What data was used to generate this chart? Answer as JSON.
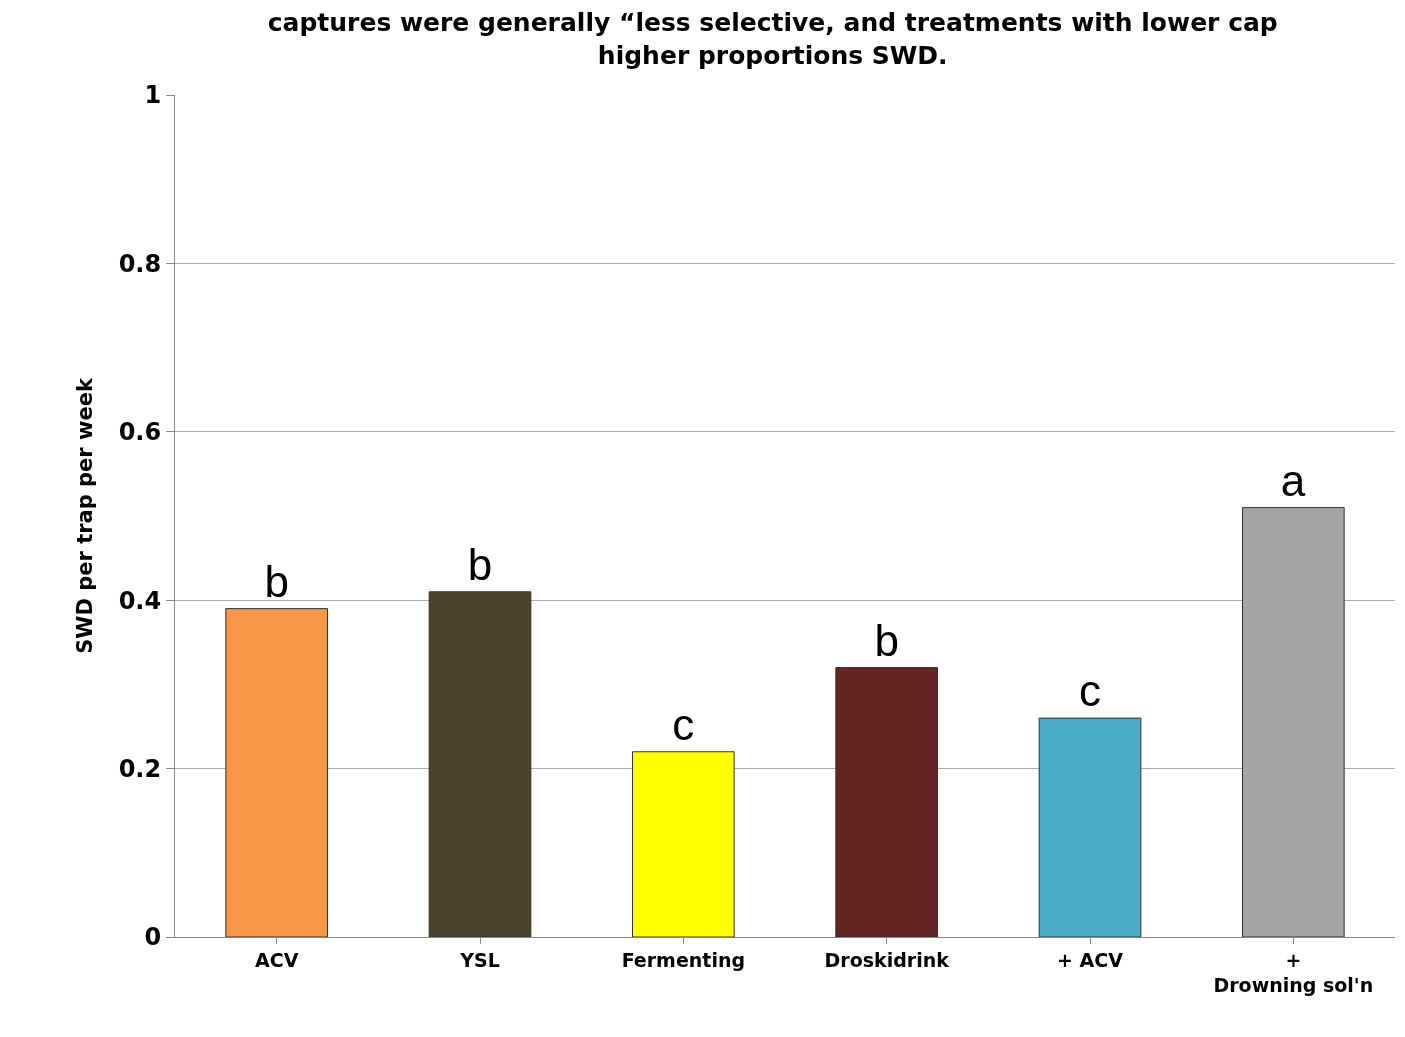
{
  "chart_data": {
    "type": "bar",
    "title": "captures were generally “less selective, and treatments with lower cap\nhigher proportions SWD.",
    "ylabel": "SWD per trap per week",
    "categories": [
      "ACV",
      "YSL",
      "Fermenting",
      "Droskidrink",
      "+ ACV",
      "+\nDrowning sol'n"
    ],
    "values": [
      0.39,
      0.41,
      0.22,
      0.32,
      0.26,
      0.51
    ],
    "colors": [
      "#f79646",
      "#4b432b",
      "#ffff00",
      "#632523",
      "#4bacc6",
      "#a5a5a5"
    ],
    "value_labels": [
      "b",
      "b",
      "c",
      "b",
      "c",
      "a"
    ],
    "ylim": [
      0,
      1
    ],
    "yticks": [
      0,
      0.2,
      0.4,
      0.6,
      0.8,
      1
    ],
    "grid": "y",
    "legend": false
  }
}
